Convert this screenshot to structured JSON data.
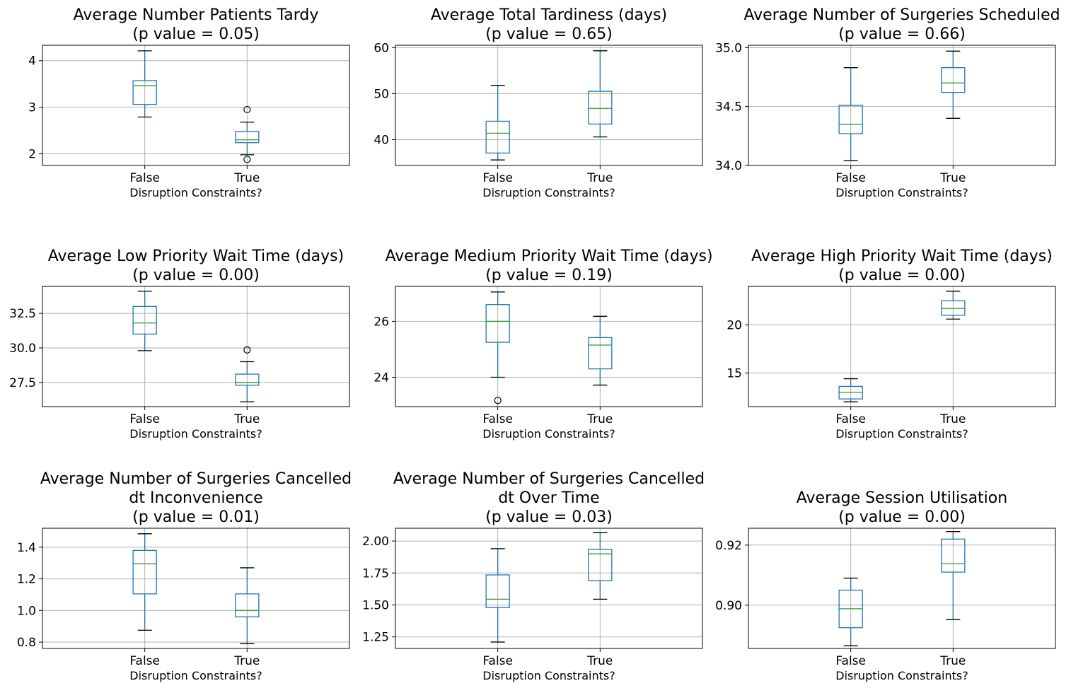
{
  "colors": {
    "box": "#1f77b4",
    "median": "#2ca02c",
    "grid": "#b0b0b0",
    "axes": "#000000",
    "outlier": "#000000"
  },
  "chart_data": [
    {
      "type": "box",
      "title": [
        "Average Number Patients Tardy",
        "(p value = 0.05)"
      ],
      "xlabel": "Disruption Constraints?",
      "categories": [
        "False",
        "True"
      ],
      "yticks": [
        2,
        3,
        4
      ],
      "ytick_labels": [
        "2",
        "3",
        "4"
      ],
      "ylim": [
        1.75,
        4.33
      ],
      "grid": true,
      "boxes": [
        {
          "category": "False",
          "whislo": 2.79,
          "q1": 3.06,
          "med": 3.46,
          "q3": 3.57,
          "whishi": 4.21,
          "fliers": []
        },
        {
          "category": "True",
          "whislo": 1.98,
          "q1": 2.24,
          "med": 2.3,
          "q3": 2.48,
          "whishi": 2.68,
          "fliers": [
            2.95,
            1.88
          ]
        }
      ]
    },
    {
      "type": "box",
      "title": [
        "Average Total Tardiness (days)",
        "(p value = 0.65)"
      ],
      "xlabel": "Disruption Constraints?",
      "categories": [
        "False",
        "True"
      ],
      "yticks": [
        40,
        50,
        60
      ],
      "ytick_labels": [
        "40",
        "50",
        "60"
      ],
      "ylim": [
        34.4,
        60.5
      ],
      "grid": true,
      "boxes": [
        {
          "category": "False",
          "whislo": 35.6,
          "q1": 37.1,
          "med": 41.4,
          "q3": 44.0,
          "whishi": 51.8,
          "fliers": []
        },
        {
          "category": "True",
          "whislo": 40.6,
          "q1": 43.4,
          "med": 46.8,
          "q3": 50.5,
          "whishi": 59.3,
          "fliers": []
        }
      ]
    },
    {
      "type": "box",
      "title": [
        "Average Number of Surgeries Scheduled",
        "(p value = 0.66)"
      ],
      "xlabel": "Disruption Constraints?",
      "categories": [
        "False",
        "True"
      ],
      "yticks": [
        34.0,
        34.5,
        35.0
      ],
      "ytick_labels": [
        "34.0",
        "34.5",
        "35.0"
      ],
      "ylim": [
        34.0,
        35.02
      ],
      "grid": true,
      "boxes": [
        {
          "category": "False",
          "whislo": 34.04,
          "q1": 34.27,
          "med": 34.35,
          "q3": 34.51,
          "whishi": 34.83,
          "fliers": []
        },
        {
          "category": "True",
          "whislo": 34.4,
          "q1": 34.62,
          "med": 34.7,
          "q3": 34.83,
          "whishi": 34.97,
          "fliers": []
        }
      ]
    },
    {
      "type": "box",
      "title": [
        "Average Low Priority Wait Time (days)",
        "(p value = 0.00)"
      ],
      "xlabel": "Disruption Constraints?",
      "categories": [
        "False",
        "True"
      ],
      "yticks": [
        27.5,
        30.0,
        32.5
      ],
      "ytick_labels": [
        "27.5",
        "30.0",
        "32.5"
      ],
      "ylim": [
        25.75,
        34.45
      ],
      "grid": true,
      "boxes": [
        {
          "category": "False",
          "whislo": 29.8,
          "q1": 31.0,
          "med": 31.8,
          "q3": 33.0,
          "whishi": 34.1,
          "fliers": []
        },
        {
          "category": "True",
          "whislo": 26.1,
          "q1": 27.3,
          "med": 27.5,
          "q3": 28.1,
          "whishi": 29.0,
          "fliers": [
            29.85
          ]
        }
      ]
    },
    {
      "type": "box",
      "title": [
        "Average Medium Priority Wait Time (days)",
        "(p value = 0.19)"
      ],
      "xlabel": "Disruption Constraints?",
      "categories": [
        "False",
        "True"
      ],
      "yticks": [
        24,
        26
      ],
      "ytick_labels": [
        "24",
        "26"
      ],
      "ylim": [
        22.95,
        27.25
      ],
      "grid": true,
      "boxes": [
        {
          "category": "False",
          "whislo": 24.0,
          "q1": 25.25,
          "med": 26.0,
          "q3": 26.6,
          "whishi": 27.05,
          "fliers": [
            23.17
          ]
        },
        {
          "category": "True",
          "whislo": 23.72,
          "q1": 24.3,
          "med": 25.15,
          "q3": 25.42,
          "whishi": 26.18,
          "fliers": []
        }
      ]
    },
    {
      "type": "box",
      "title": [
        "Average High Priority Wait Time (days)",
        "(p value = 0.00)"
      ],
      "xlabel": "Disruption Constraints?",
      "categories": [
        "False",
        "True"
      ],
      "yticks": [
        15,
        20
      ],
      "ytick_labels": [
        "15",
        "20"
      ],
      "ylim": [
        11.5,
        24.0
      ],
      "grid": true,
      "boxes": [
        {
          "category": "False",
          "whislo": 12.0,
          "q1": 12.3,
          "med": 13.0,
          "q3": 13.6,
          "whishi": 14.4,
          "fliers": []
        },
        {
          "category": "True",
          "whislo": 20.6,
          "q1": 21.0,
          "med": 21.7,
          "q3": 22.5,
          "whishi": 23.5,
          "fliers": []
        }
      ]
    },
    {
      "type": "box",
      "title": [
        "Average Number of Surgeries Cancelled",
        "dt Inconvenience",
        "(p value = 0.01)"
      ],
      "xlabel": "Disruption Constraints?",
      "categories": [
        "False",
        "True"
      ],
      "yticks": [
        0.8,
        1.0,
        1.2,
        1.4
      ],
      "ytick_labels": [
        "0.8",
        "1.0",
        "1.2",
        "1.4"
      ],
      "ylim": [
        0.76,
        1.52
      ],
      "grid": true,
      "boxes": [
        {
          "category": "False",
          "whislo": 0.875,
          "q1": 1.105,
          "med": 1.295,
          "q3": 1.38,
          "whishi": 1.485,
          "fliers": []
        },
        {
          "category": "True",
          "whislo": 0.79,
          "q1": 0.96,
          "med": 1.0,
          "q3": 1.105,
          "whishi": 1.27,
          "fliers": []
        }
      ]
    },
    {
      "type": "box",
      "title": [
        "Average Number of Surgeries Cancelled",
        "dt Over Time",
        "(p value = 0.03)"
      ],
      "xlabel": "Disruption Constraints?",
      "categories": [
        "False",
        "True"
      ],
      "yticks": [
        1.25,
        1.5,
        1.75,
        2.0
      ],
      "ytick_labels": [
        "1.25",
        "1.50",
        "1.75",
        "2.00"
      ],
      "ylim": [
        1.16,
        2.1
      ],
      "grid": true,
      "boxes": [
        {
          "category": "False",
          "whislo": 1.21,
          "q1": 1.48,
          "med": 1.545,
          "q3": 1.735,
          "whishi": 1.94,
          "fliers": []
        },
        {
          "category": "True",
          "whislo": 1.545,
          "q1": 1.69,
          "med": 1.9,
          "q3": 1.935,
          "whishi": 2.065,
          "fliers": []
        }
      ]
    },
    {
      "type": "box",
      "title": [
        "Average Session Utilisation",
        "(p value = 0.00)"
      ],
      "xlabel": "Disruption Constraints?",
      "categories": [
        "False",
        "True"
      ],
      "yticks": [
        0.9,
        0.92
      ],
      "ytick_labels": [
        "0.90",
        "0.92"
      ],
      "ylim": [
        0.8856,
        0.9256
      ],
      "grid": true,
      "boxes": [
        {
          "category": "False",
          "whislo": 0.8865,
          "q1": 0.8925,
          "med": 0.8988,
          "q3": 0.905,
          "whishi": 0.909,
          "fliers": []
        },
        {
          "category": "True",
          "whislo": 0.8952,
          "q1": 0.911,
          "med": 0.9138,
          "q3": 0.922,
          "whishi": 0.9245,
          "fliers": []
        }
      ]
    }
  ]
}
